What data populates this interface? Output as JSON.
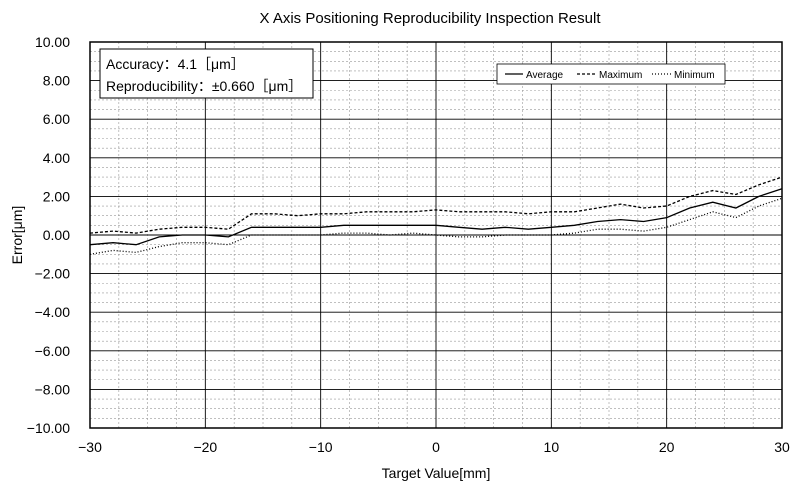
{
  "chart_data": {
    "type": "line",
    "title": "X Axis Positioning Reproducibility Inspection Result",
    "xlabel": "Target Value[mm]",
    "ylabel": "Error[μm]",
    "xlim": [
      -30,
      30
    ],
    "ylim": [
      -10,
      10
    ],
    "xticks": [
      -30,
      -20,
      -10,
      0,
      10,
      20,
      30
    ],
    "xtick_labels": [
      "−30",
      "−20",
      "−10",
      "0",
      "10",
      "20",
      "30"
    ],
    "yticks": [
      10,
      8,
      6,
      4,
      2,
      0,
      -2,
      -4,
      -6,
      -8,
      -10
    ],
    "ytick_labels": [
      "10.00",
      "8.00",
      "6.00",
      "4.00",
      "2.00",
      "0.00",
      "−2.00",
      "−4.00",
      "−6.00",
      "−8.00",
      "−10.00"
    ],
    "grid": true,
    "legend_position": "top-right",
    "annotations": [
      "Accuracy：4.1［μm］",
      "Reproducibility：±0.660［μm］"
    ],
    "x": [
      -30,
      -28,
      -26,
      -24,
      -22,
      -20,
      -18,
      -16,
      -14,
      -12,
      -10,
      -8,
      -6,
      -4,
      -2,
      0,
      2,
      4,
      6,
      8,
      10,
      12,
      14,
      16,
      18,
      20,
      22,
      24,
      26,
      28,
      30
    ],
    "series": [
      {
        "name": "Average",
        "style": "solid",
        "values": [
          -0.5,
          -0.4,
          -0.5,
          -0.1,
          0.0,
          0.0,
          -0.1,
          0.4,
          0.4,
          0.4,
          0.4,
          0.5,
          0.5,
          0.5,
          0.5,
          0.5,
          0.4,
          0.3,
          0.4,
          0.3,
          0.4,
          0.5,
          0.7,
          0.8,
          0.7,
          0.9,
          1.4,
          1.7,
          1.4,
          2.0,
          2.4
        ]
      },
      {
        "name": "Maximum",
        "style": "dashed",
        "values": [
          0.1,
          0.2,
          0.1,
          0.3,
          0.4,
          0.4,
          0.3,
          1.1,
          1.1,
          1.0,
          1.1,
          1.1,
          1.2,
          1.2,
          1.2,
          1.3,
          1.2,
          1.2,
          1.2,
          1.1,
          1.2,
          1.2,
          1.4,
          1.6,
          1.4,
          1.5,
          2.0,
          2.3,
          2.1,
          2.6,
          3.0
        ]
      },
      {
        "name": "Minimum",
        "style": "dotted",
        "values": [
          -1.0,
          -0.8,
          -0.9,
          -0.6,
          -0.4,
          -0.4,
          -0.5,
          0.0,
          0.0,
          0.0,
          0.0,
          0.1,
          0.1,
          0.0,
          0.1,
          0.0,
          -0.1,
          -0.1,
          0.0,
          0.0,
          0.0,
          0.1,
          0.3,
          0.3,
          0.2,
          0.4,
          0.8,
          1.2,
          0.9,
          1.5,
          1.9
        ]
      }
    ]
  }
}
